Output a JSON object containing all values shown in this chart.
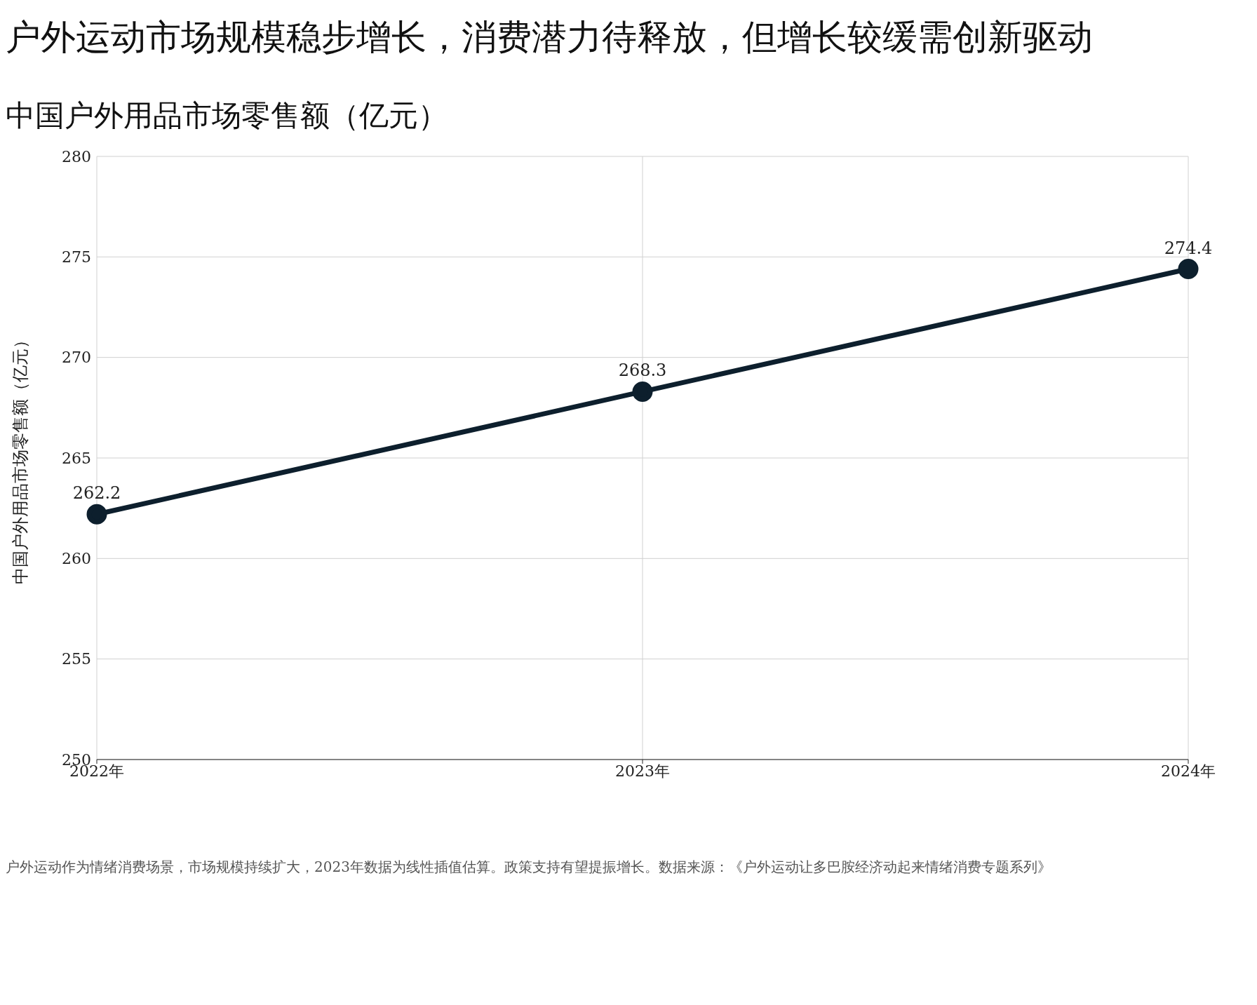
{
  "chart_data": {
    "type": "line",
    "title": "户外运动市场规模稳步增长，消费潜力待释放，但增长较缓需创新驱动",
    "subtitle": "中国户外用品市场零售额（亿元）",
    "ylabel": "中国户外用品市场零售额（亿元）",
    "categories": [
      "2022年",
      "2023年",
      "2024年"
    ],
    "series": [
      {
        "color": "#0d1f2d",
        "values": [
          262.2,
          268.3,
          274.4
        ]
      }
    ],
    "ylim": [
      250,
      280
    ],
    "yticks": [
      250,
      255,
      260,
      265,
      270,
      275,
      280
    ],
    "grid": true,
    "marker": "circle",
    "line_style": "solid",
    "data_labels": true,
    "annotations": [
      "户外运动作为情绪消费场景，市场规模持续扩大，2023年数据为线性插值估算。政策支持有望提振增长。数据来源：《户外运动让多巴胺经济动起来情绪消费专题系列》"
    ]
  }
}
